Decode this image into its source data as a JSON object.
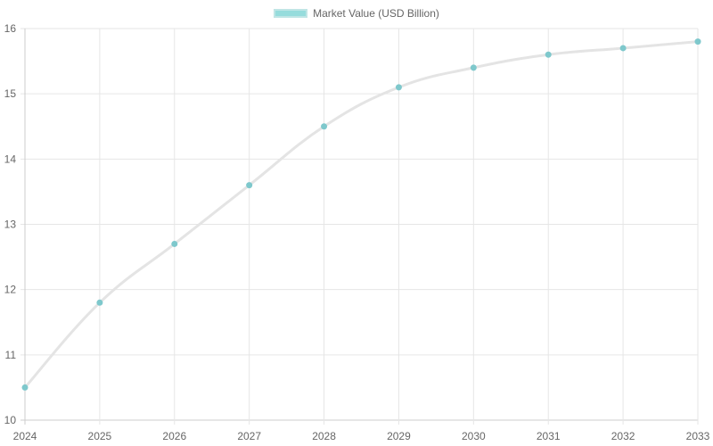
{
  "chart_data": {
    "type": "line",
    "title": "",
    "xlabel": "",
    "ylabel": "",
    "categories": [
      "2024",
      "2025",
      "2026",
      "2027",
      "2028",
      "2029",
      "2030",
      "2031",
      "2032",
      "2033"
    ],
    "series": [
      {
        "name": "Market Value (USD Billion)",
        "values": [
          10.5,
          11.8,
          12.7,
          13.6,
          14.5,
          15.1,
          15.4,
          15.6,
          15.7,
          15.8
        ]
      }
    ],
    "ylim": [
      10,
      16
    ],
    "yticks": [
      10,
      11,
      12,
      13,
      14,
      15,
      16
    ],
    "grid": true,
    "legend_position": "top"
  },
  "colors": {
    "line": "#e4e4e4",
    "point": "#7ec8cc",
    "grid": "#e6e6e6",
    "tick_text": "#666666",
    "legend_fill": "#96dcdc",
    "legend_border": "#bfe5e5"
  },
  "legend": {
    "label": "Market Value (USD Billion)"
  }
}
